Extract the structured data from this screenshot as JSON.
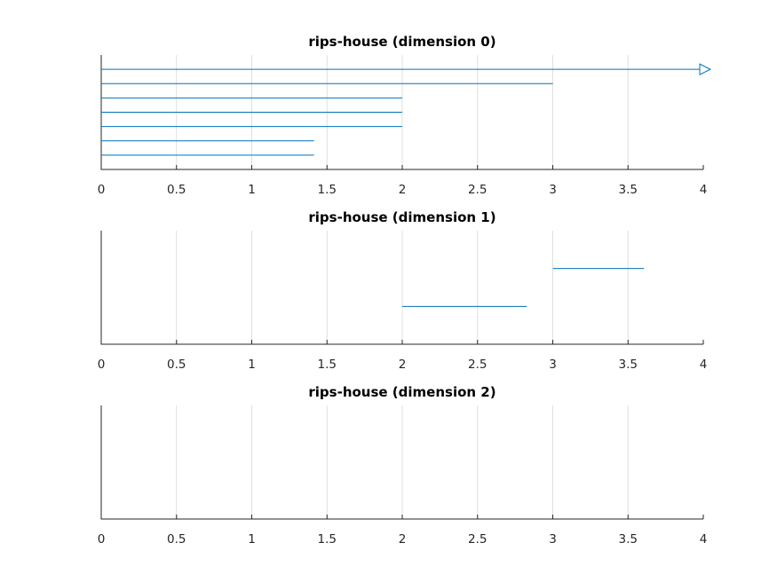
{
  "chart_data": [
    {
      "type": "barcode",
      "title": "rips-house (dimension 0)",
      "xlim": [
        0,
        4
      ],
      "xticks": [
        "0",
        "0.5",
        "1",
        "1.5",
        "2",
        "2.5",
        "3",
        "3.5",
        "4"
      ],
      "grid": true,
      "color": "#0072bd",
      "intervals": [
        {
          "start": 0,
          "end": 4,
          "infinite": true
        },
        {
          "start": 0,
          "end": 3,
          "infinite": false
        },
        {
          "start": 0,
          "end": 2,
          "infinite": false
        },
        {
          "start": 0,
          "end": 2,
          "infinite": false
        },
        {
          "start": 0,
          "end": 2,
          "infinite": false
        },
        {
          "start": 0,
          "end": 1.414,
          "infinite": false
        },
        {
          "start": 0,
          "end": 1.414,
          "infinite": false
        }
      ]
    },
    {
      "type": "barcode",
      "title": "rips-house (dimension 1)",
      "xlim": [
        0,
        4
      ],
      "xticks": [
        "0",
        "0.5",
        "1",
        "1.5",
        "2",
        "2.5",
        "3",
        "3.5",
        "4"
      ],
      "grid": true,
      "color": "#0072bd",
      "intervals": [
        {
          "start": 3,
          "end": 3.606,
          "infinite": false
        },
        {
          "start": 2,
          "end": 2.828,
          "infinite": false
        }
      ]
    },
    {
      "type": "barcode",
      "title": "rips-house (dimension 2)",
      "xlim": [
        0,
        4
      ],
      "xticks": [
        "0",
        "0.5",
        "1",
        "1.5",
        "2",
        "2.5",
        "3",
        "3.5",
        "4"
      ],
      "grid": true,
      "color": "#0072bd",
      "intervals": []
    }
  ]
}
